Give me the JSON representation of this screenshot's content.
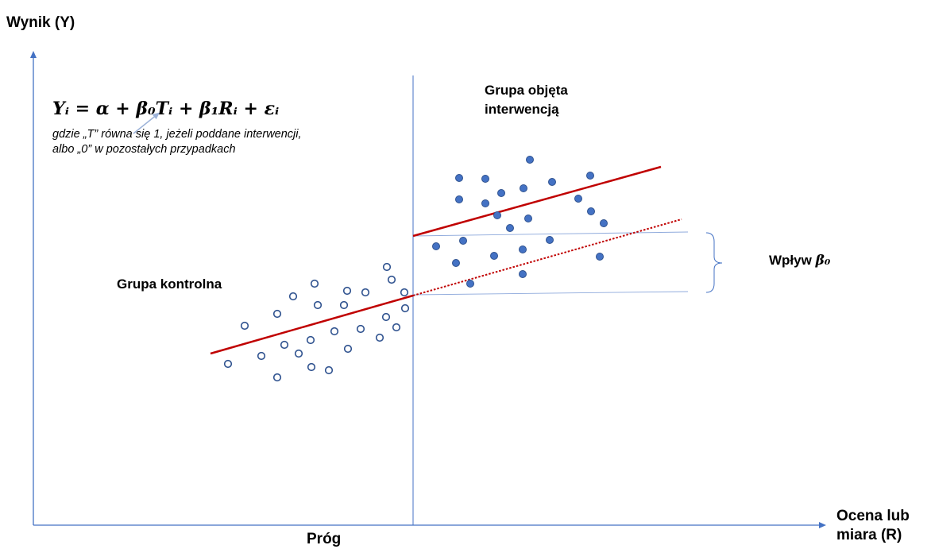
{
  "axes": {
    "y_label": "Wynik (Y)",
    "x_label_line1": "Ocena lub",
    "x_label_line2": "miara (R)",
    "threshold_label": "Próg"
  },
  "formula": "Yᵢ = α +  β₀Tᵢ + β₁Rᵢ + εᵢ",
  "note": "gdzie „T” równa się 1, jeżeli poddane interwencji, albo „0” w pozostałych przypadkach",
  "groups": {
    "treated_line1": "Grupa objęta",
    "treated_line2": "interwencją",
    "control": "Grupa kontrolna"
  },
  "impact": {
    "label": "Wpływ ",
    "symbol": "β₀"
  },
  "colors": {
    "axis": "#4472C4",
    "regression": "#C00000",
    "points": "#4472C4",
    "point_stroke": "#2F528F",
    "guide": "#8FAADC"
  }
}
